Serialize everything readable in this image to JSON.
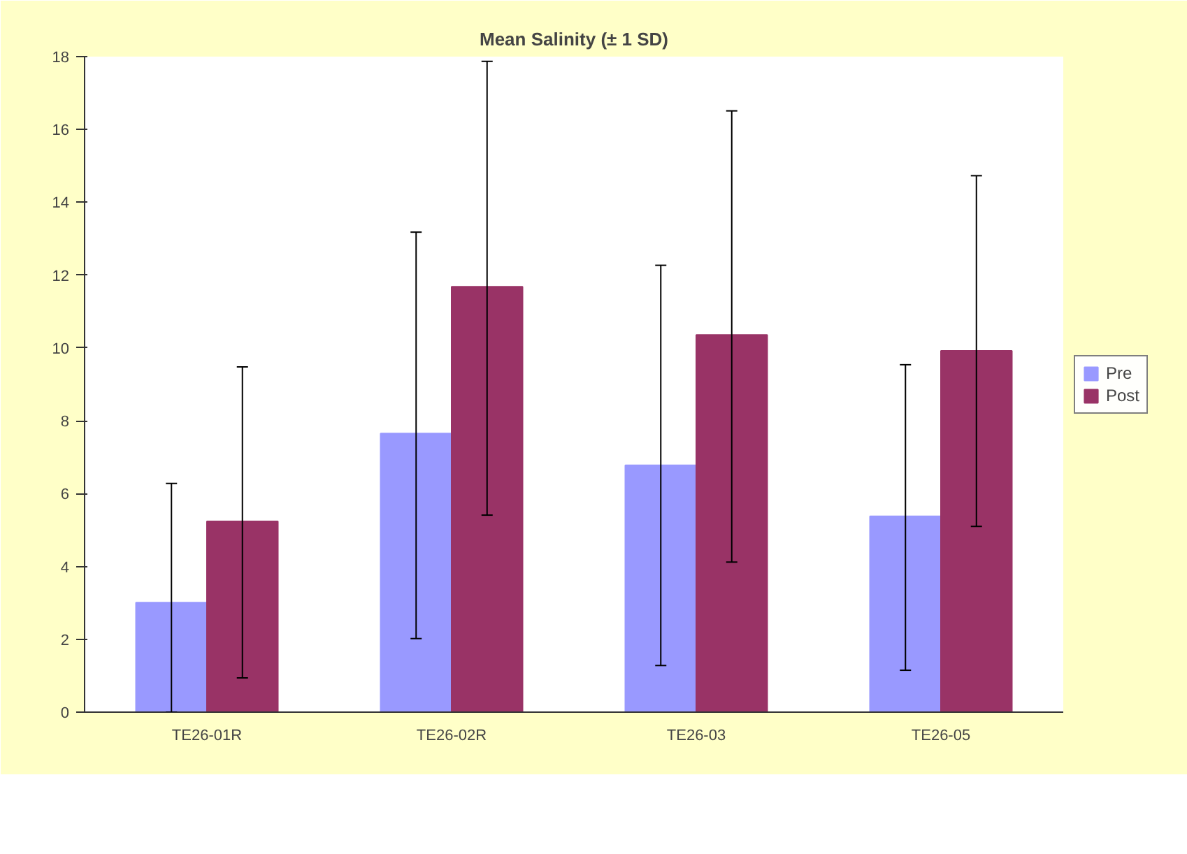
{
  "chart_data": {
    "type": "bar",
    "title": "Mean Salinity (± 1 SD)",
    "categories": [
      "TE26-01R",
      "TE26-02R",
      "TE26-03",
      "TE26-05"
    ],
    "series": [
      {
        "name": "Pre",
        "color": "#9999ff",
        "values": [
          3.01,
          7.65,
          6.78,
          5.38
        ],
        "errors": [
          [
            0,
            6.28
          ],
          [
            2.02,
            13.18
          ],
          [
            1.28,
            12.27
          ],
          [
            1.15,
            9.54
          ]
        ]
      },
      {
        "name": "Post",
        "color": "#993366",
        "values": [
          5.24,
          11.68,
          10.36,
          9.92
        ],
        "errors": [
          [
            0.94,
            9.48
          ],
          [
            5.41,
            17.87
          ],
          [
            4.12,
            16.51
          ],
          [
            5.1,
            14.73
          ]
        ]
      }
    ],
    "ylim": [
      0,
      18
    ],
    "yticks": [
      0,
      2,
      4,
      6,
      8,
      10,
      12,
      14,
      16,
      18
    ],
    "grid": false,
    "legend": "right"
  }
}
